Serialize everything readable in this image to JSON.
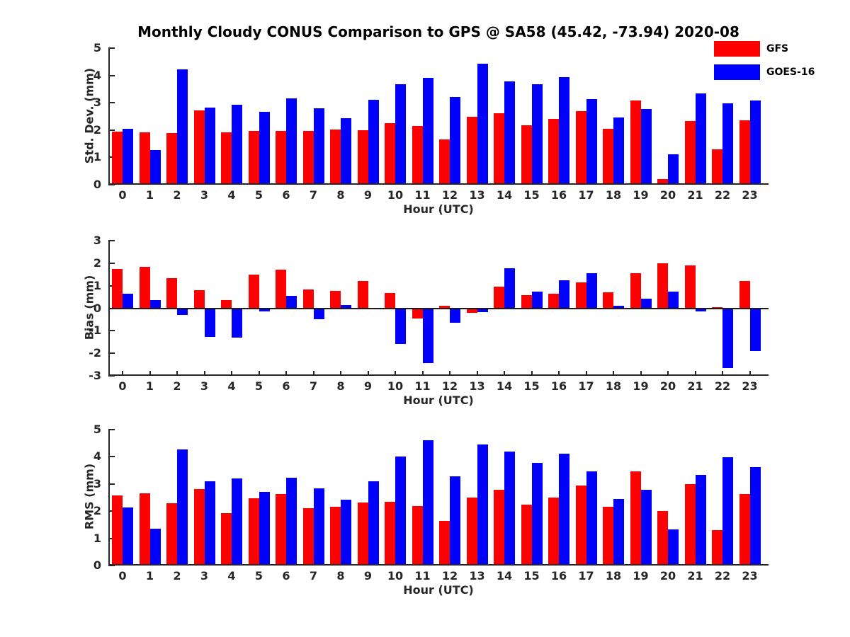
{
  "title": "Monthly Cloudy CONUS Comparison to GPS @ SA58 (45.42, -73.94) 2020-08",
  "colors": {
    "gfs": "#ff0000",
    "goes16": "#0000ff",
    "axis": "#262626",
    "background": "#ffffff"
  },
  "legend": {
    "position": "top-right",
    "items": [
      {
        "label": "GFS",
        "color": "#ff0000"
      },
      {
        "label": "GOES-16",
        "color": "#0000ff"
      }
    ]
  },
  "chart_data": [
    {
      "type": "bar",
      "name": "std_dev",
      "ylabel": "Std. Dev. (mm)",
      "xlabel": "Hour (UTC)",
      "ylim": [
        0,
        5
      ],
      "yticks": [
        0,
        1,
        2,
        3,
        4,
        5
      ],
      "grid": false,
      "categories": [
        "0",
        "1",
        "2",
        "3",
        "4",
        "5",
        "6",
        "7",
        "8",
        "9",
        "10",
        "11",
        "12",
        "13",
        "14",
        "15",
        "16",
        "17",
        "18",
        "19",
        "20",
        "21",
        "22",
        "23"
      ],
      "series": [
        {
          "name": "GFS",
          "color": "#ff0000",
          "values": [
            1.95,
            1.93,
            1.9,
            2.72,
            1.92,
            1.98,
            1.98,
            1.96,
            2.03,
            2.0,
            2.25,
            2.15,
            1.65,
            2.5,
            2.62,
            2.18,
            2.42,
            2.7,
            2.05,
            3.08,
            0.2,
            2.32,
            1.3,
            2.35
          ]
        },
        {
          "name": "GOES-16",
          "color": "#0000ff",
          "values": [
            2.05,
            1.28,
            4.22,
            2.82,
            2.92,
            2.68,
            3.16,
            2.81,
            2.43,
            3.1,
            3.67,
            3.9,
            3.21,
            4.43,
            3.78,
            3.68,
            3.93,
            3.13,
            2.45,
            2.76,
            1.12,
            3.35,
            2.98,
            3.07
          ]
        }
      ]
    },
    {
      "type": "bar",
      "name": "bias",
      "ylabel": "Bias (mm)",
      "xlabel": "Hour (UTC)",
      "ylim": [
        -3,
        3
      ],
      "yticks": [
        -3,
        -2,
        -1,
        0,
        1,
        2,
        3
      ],
      "grid": false,
      "categories": [
        "0",
        "1",
        "2",
        "3",
        "4",
        "5",
        "6",
        "7",
        "8",
        "9",
        "10",
        "11",
        "12",
        "13",
        "14",
        "15",
        "16",
        "17",
        "18",
        "19",
        "20",
        "21",
        "22",
        "23"
      ],
      "series": [
        {
          "name": "GFS",
          "color": "#ff0000",
          "values": [
            1.75,
            1.85,
            1.33,
            0.8,
            0.36,
            1.5,
            1.7,
            0.84,
            0.77,
            1.2,
            0.66,
            -0.45,
            0.1,
            -0.19,
            0.95,
            0.57,
            0.63,
            1.15,
            0.7,
            1.55,
            2.0,
            1.9,
            0.06,
            1.2
          ]
        },
        {
          "name": "GOES-16",
          "color": "#0000ff",
          "values": [
            0.64,
            0.36,
            -0.3,
            -1.28,
            -1.3,
            -0.14,
            0.55,
            -0.49,
            0.13,
            0.0,
            -1.6,
            -2.45,
            -0.63,
            -0.16,
            1.78,
            0.74,
            1.25,
            1.55,
            0.1,
            0.43,
            0.73,
            -0.14,
            -2.65,
            -1.9
          ]
        }
      ]
    },
    {
      "type": "bar",
      "name": "rms",
      "ylabel": "RMS (mm)",
      "xlabel": "Hour (UTC)",
      "ylim": [
        0,
        5
      ],
      "yticks": [
        0,
        1,
        2,
        3,
        4,
        5
      ],
      "grid": false,
      "categories": [
        "0",
        "1",
        "2",
        "3",
        "4",
        "5",
        "6",
        "7",
        "8",
        "9",
        "10",
        "11",
        "12",
        "13",
        "14",
        "15",
        "16",
        "17",
        "18",
        "19",
        "20",
        "21",
        "22",
        "23"
      ],
      "series": [
        {
          "name": "GFS",
          "color": "#ff0000",
          "values": [
            2.58,
            2.65,
            2.3,
            2.8,
            1.94,
            2.48,
            2.62,
            2.12,
            2.17,
            2.33,
            2.34,
            2.18,
            1.64,
            2.51,
            2.78,
            2.24,
            2.5,
            2.93,
            2.16,
            3.46,
            2.0,
            3.0,
            1.3,
            2.64
          ]
        },
        {
          "name": "GOES-16",
          "color": "#0000ff",
          "values": [
            2.14,
            1.35,
            4.26,
            3.1,
            3.2,
            2.71,
            3.23,
            2.85,
            2.43,
            3.11,
            4.02,
            4.62,
            3.27,
            4.46,
            4.2,
            3.78,
            4.12,
            3.47,
            2.44,
            2.78,
            1.33,
            3.34,
            3.98,
            3.63
          ]
        }
      ]
    }
  ]
}
